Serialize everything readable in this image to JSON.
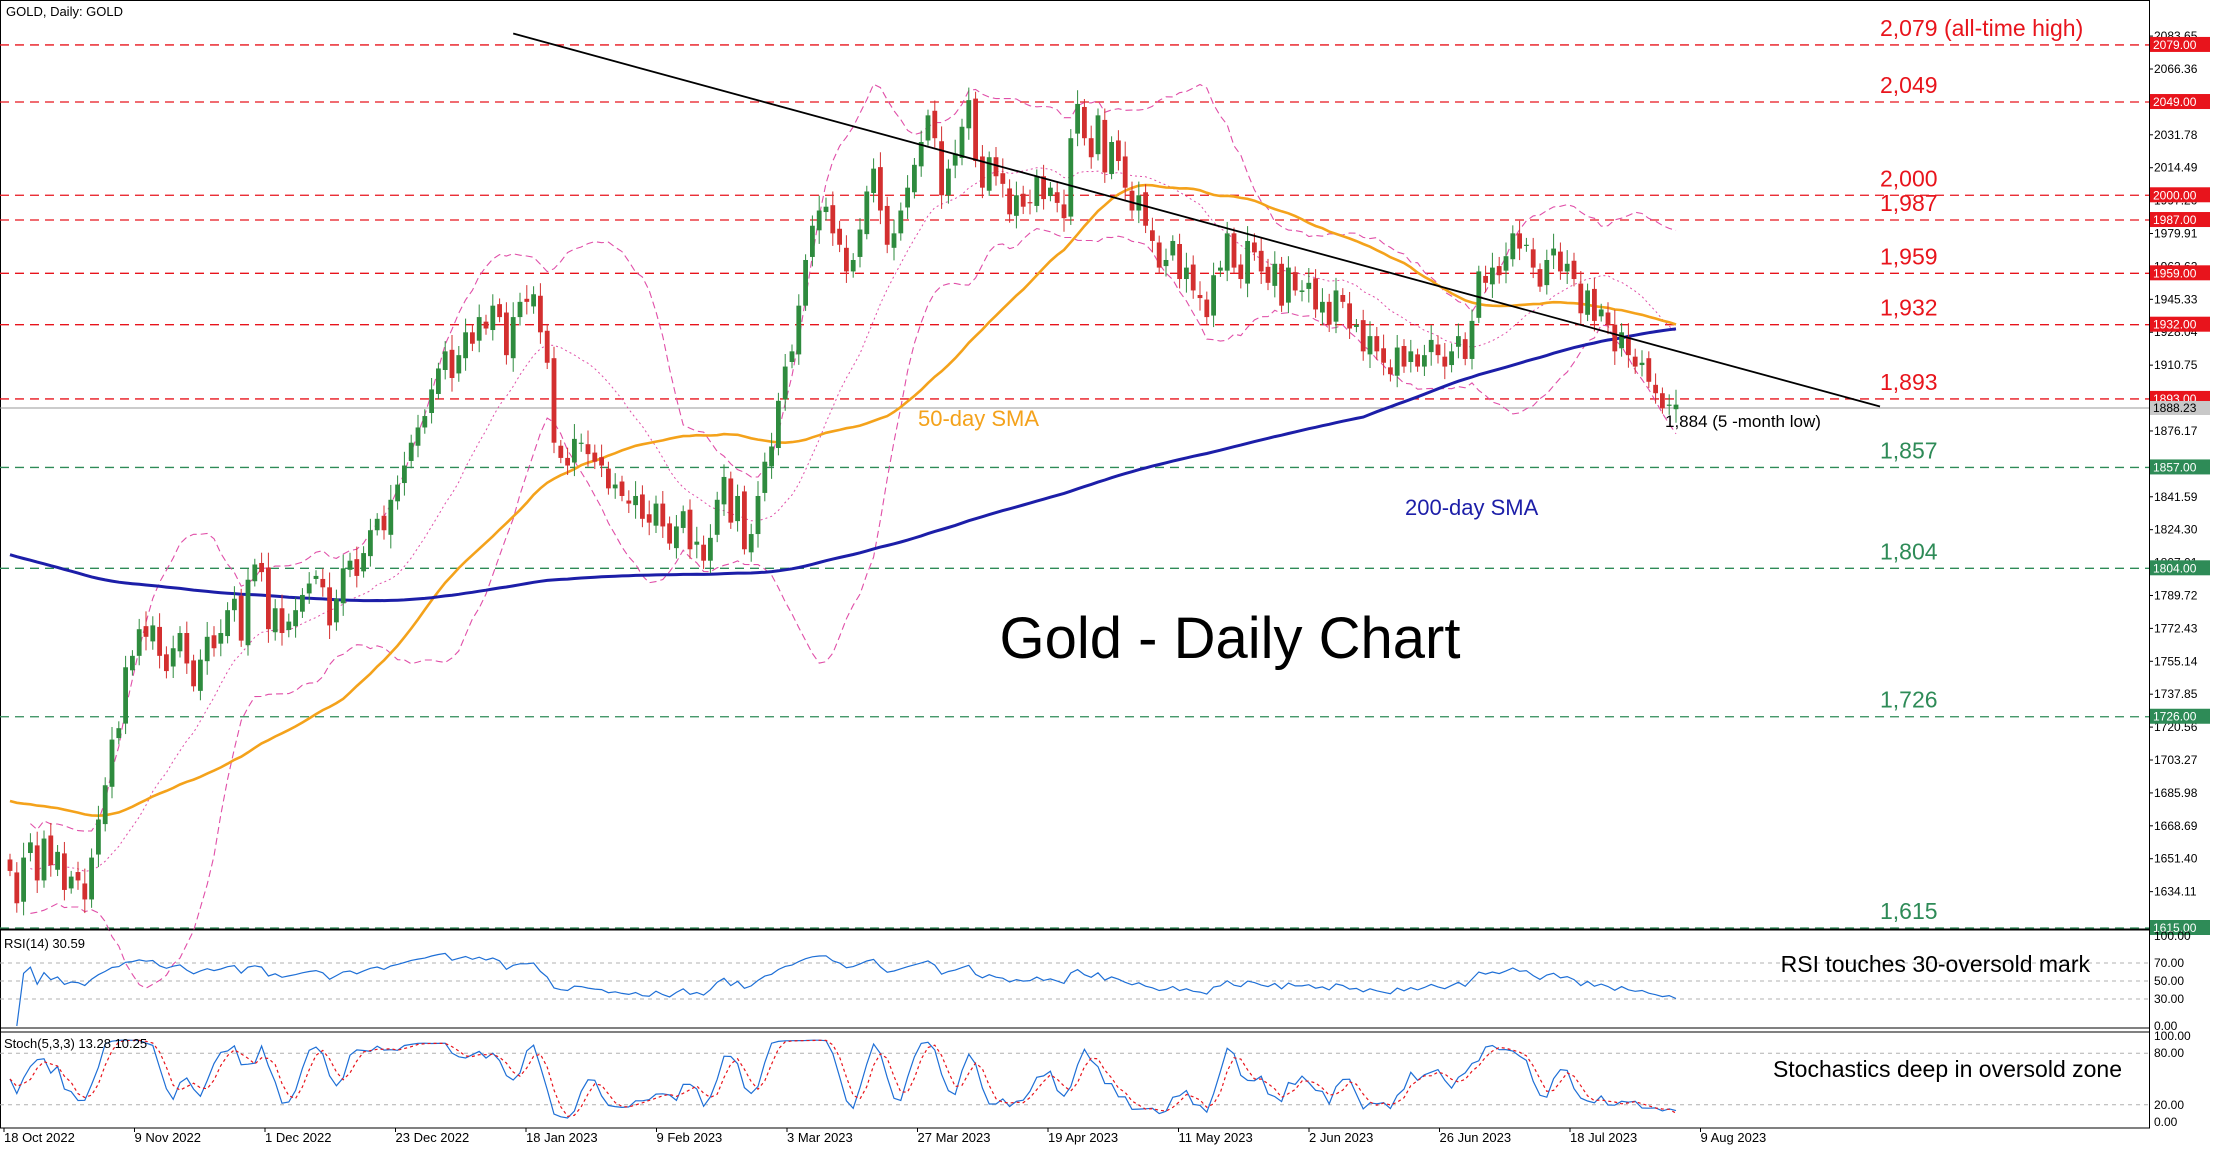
{
  "header": {
    "symbol_label": "GOLD, Daily:  GOLD"
  },
  "chart_data": {
    "type": "line",
    "title": "Gold - Daily Chart",
    "main": {
      "ylim": [
        1615,
        2090
      ],
      "y_ticks": [
        "2083.65",
        "2066.36",
        "2049.07",
        "2031.78",
        "2014.49",
        "1997.20",
        "1979.91",
        "1962.62",
        "1945.33",
        "1928.04",
        "1910.75",
        "1893.46",
        "1876.17",
        "1858.88",
        "1841.59",
        "1824.30",
        "1807.01",
        "1789.72",
        "1772.43",
        "1755.14",
        "1737.85",
        "1720.56",
        "1703.27",
        "1685.98",
        "1668.69",
        "1651.40",
        "1634.11"
      ],
      "x_dates": [
        "18 Oct 2022",
        "9 Nov 2022",
        "1 Dec 2022",
        "23 Dec 2022",
        "18 Jan 2023",
        "9 Feb 2023",
        "3 Mar 2023",
        "27 Mar 2023",
        "19 Apr 2023",
        "11 May 2023",
        "2 Jun 2023",
        "26 Jun 2023",
        "18 Jul 2023",
        "9 Aug 2023"
      ],
      "levels": [
        {
          "value": 2079,
          "label": "2,079 (all-time high)",
          "tag": "2079.00",
          "color": "#e8141c"
        },
        {
          "value": 2049,
          "label": "2,049",
          "tag": "2049.00",
          "color": "#e8141c"
        },
        {
          "value": 2000,
          "label": "2,000",
          "tag": "2000.00",
          "color": "#e8141c"
        },
        {
          "value": 1987,
          "label": "1,987",
          "tag": "1987.00",
          "color": "#e8141c"
        },
        {
          "value": 1959,
          "label": "1,959",
          "tag": "1959.00",
          "color": "#e8141c"
        },
        {
          "value": 1932,
          "label": "1,932",
          "tag": "1932.00",
          "color": "#e8141c"
        },
        {
          "value": 1893,
          "label": "1,893",
          "tag": "1893.00",
          "color": "#e8141c"
        },
        {
          "value": 1857,
          "label": "1,857",
          "tag": "1857.00",
          "color": "#2e8b57"
        },
        {
          "value": 1804,
          "label": "1,804",
          "tag": "1804.00",
          "color": "#2e8b57"
        },
        {
          "value": 1726,
          "label": "1,726",
          "tag": "1726.00",
          "color": "#2e8b57"
        },
        {
          "value": 1615,
          "label": "1,615",
          "tag": "1615.00",
          "color": "#2e8b57"
        }
      ],
      "last_price_tag": "1888.23",
      "trendline": {
        "start": [
          74,
          2085
        ],
        "end": [
          275,
          1889
        ]
      },
      "annotations": {
        "sma50_label": "50-day SMA",
        "sma200_label": "200-day SMA",
        "low_label": "1,884 (5 -month low)"
      },
      "closes": [
        1645,
        1628,
        1652,
        1660,
        1640,
        1662,
        1648,
        1655,
        1635,
        1642,
        1640,
        1630,
        1652,
        1672,
        1690,
        1714,
        1720,
        1752,
        1758,
        1772,
        1768,
        1774,
        1758,
        1750,
        1762,
        1770,
        1754,
        1742,
        1756,
        1768,
        1762,
        1770,
        1782,
        1788,
        1766,
        1798,
        1806,
        1802,
        1772,
        1783,
        1770,
        1776,
        1782,
        1790,
        1796,
        1800,
        1794,
        1774,
        1788,
        1804,
        1808,
        1800,
        1812,
        1824,
        1830,
        1824,
        1840,
        1848,
        1858,
        1870,
        1878,
        1884,
        1898,
        1909,
        1918,
        1904,
        1916,
        1928,
        1922,
        1936,
        1930,
        1942,
        1936,
        1916,
        1936,
        1944,
        1944,
        1948,
        1928,
        1912,
        1870,
        1862,
        1858,
        1872,
        1870,
        1864,
        1860,
        1858,
        1846,
        1848,
        1842,
        1838,
        1842,
        1830,
        1828,
        1838,
        1826,
        1817,
        1826,
        1834,
        1814,
        1818,
        1808,
        1820,
        1840,
        1852,
        1828,
        1842,
        1814,
        1822,
        1842,
        1860,
        1868,
        1892,
        1910,
        1918,
        1942,
        1966,
        1984,
        1992,
        1994,
        1980,
        1974,
        1960,
        1966,
        1982,
        2002,
        2014,
        1992,
        1974,
        1980,
        1992,
        2004,
        2016,
        2028,
        2042,
        2030,
        2000,
        2014,
        2022,
        2036,
        2050,
        2018,
        2004,
        2020,
        2010,
        2006,
        1990,
        2000,
        1994,
        1996,
        2010,
        1998,
        2004,
        1996,
        1988,
        2030,
        2048,
        2030,
        2020,
        2042,
        2012,
        2028,
        2018,
        2004,
        1992,
        2000,
        1984,
        1976,
        1962,
        1966,
        1976,
        1956,
        1962,
        1950,
        1946,
        1936,
        1958,
        1962,
        1980,
        1962,
        1956,
        1976,
        1970,
        1960,
        1954,
        1964,
        1942,
        1962,
        1950,
        1950,
        1954,
        1940,
        1944,
        1932,
        1950,
        1944,
        1930,
        1932,
        1918,
        1926,
        1918,
        1912,
        1906,
        1920,
        1910,
        1918,
        1910,
        1916,
        1924,
        1916,
        1910,
        1918,
        1926,
        1914,
        1934,
        1960,
        1954,
        1962,
        1958,
        1968,
        1980,
        1972,
        1974,
        1962,
        1952,
        1966,
        1972,
        1960,
        1964,
        1956,
        1938,
        1950,
        1934,
        1940,
        1932,
        1918,
        1928,
        1916,
        1910,
        1912,
        1902,
        1896,
        1888,
        1890,
        1890
      ]
    },
    "rsi": {
      "label": "RSI(14) 30.59",
      "note": "RSI touches 30-oversold mark",
      "ylim": [
        0,
        100
      ],
      "y_ticks": [
        "100.00",
        "70.00",
        "50.00",
        "30.00",
        "0.00"
      ],
      "levels": [
        70,
        50,
        30
      ],
      "last_value": 30.59
    },
    "stoch": {
      "label": "Stoch(5,3,3) 13.28 10.25",
      "note": "Stochastics deep in oversold zone",
      "ylim": [
        0,
        100
      ],
      "y_ticks": [
        "100.00",
        "80.00",
        "20.00",
        "0.00"
      ],
      "levels": [
        80,
        20
      ],
      "k_last": 13.28,
      "d_last": 10.25
    }
  },
  "colors": {
    "background": "#ffffff",
    "bull_candle": "#2e8b3e",
    "bear_candle": "#d32f2f",
    "sma50": "#f4a21b",
    "sma200": "#1c1ea8",
    "bollinger": "#e04fa8",
    "resistance": "#e8141c",
    "support": "#2e8b57",
    "indicator": "#1e6fd6",
    "signal": "#e8141c"
  }
}
